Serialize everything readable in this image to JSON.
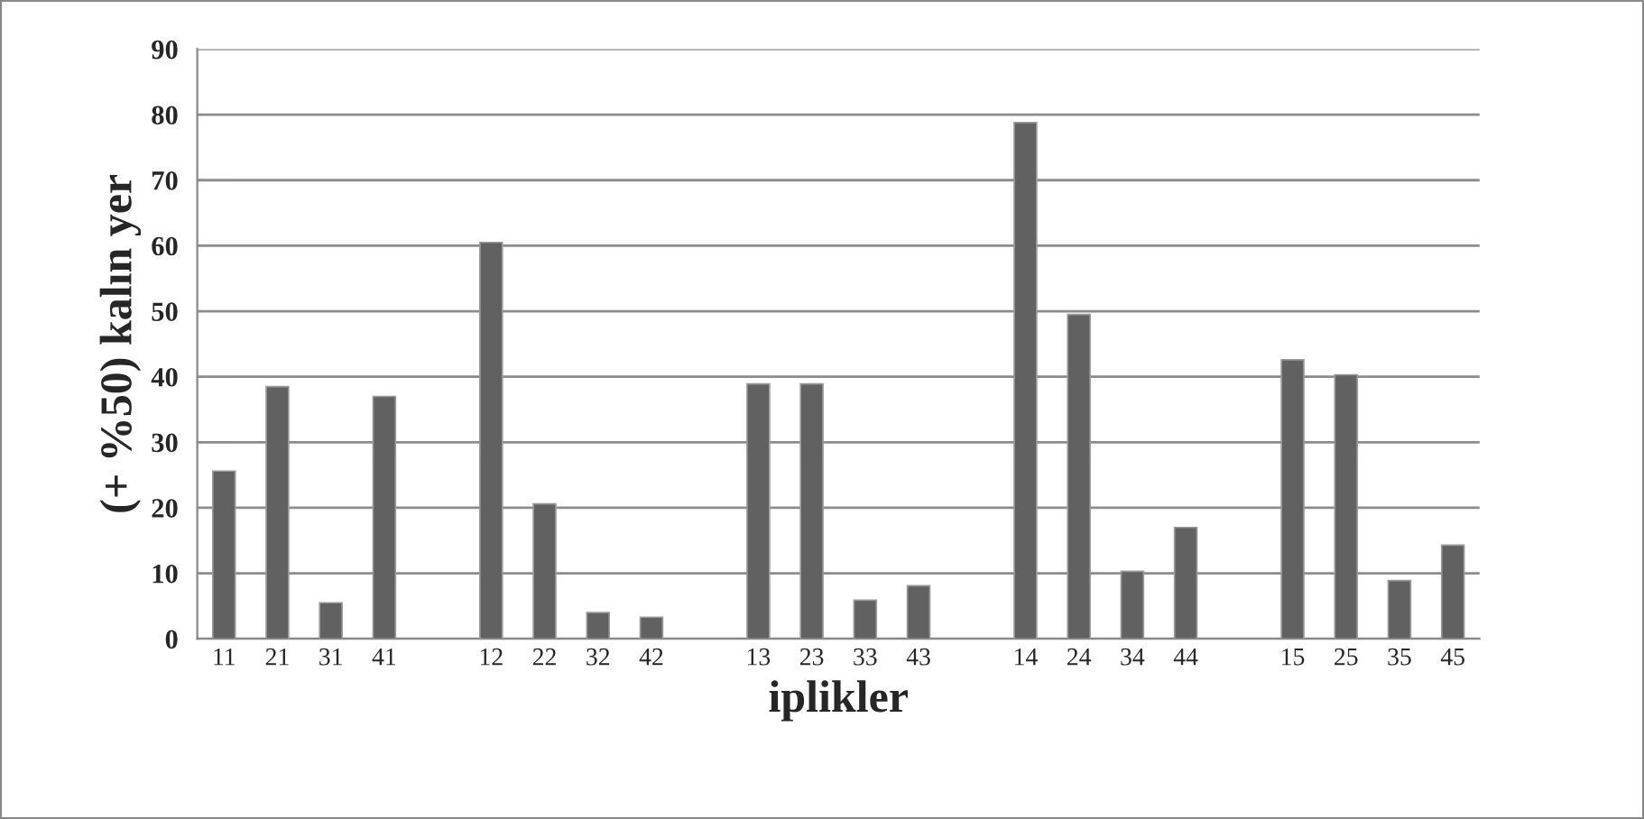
{
  "chart_data": {
    "type": "bar",
    "xlabel": "iplikler",
    "ylabel": "(+ %50) kalın yer",
    "categories": [
      "11",
      "21",
      "31",
      "41",
      null,
      "12",
      "22",
      "32",
      "42",
      null,
      "13",
      "23",
      "33",
      "43",
      null,
      "14",
      "24",
      "34",
      "44",
      null,
      "15",
      "25",
      "35",
      "45"
    ],
    "values": [
      25.6,
      38.5,
      5.5,
      37,
      null,
      60.5,
      20.6,
      4,
      3.3,
      null,
      38.9,
      38.9,
      5.9,
      8.1,
      null,
      78.8,
      49.5,
      10.3,
      17,
      null,
      42.6,
      40.3,
      8.9,
      14.3
    ],
    "color": "#616161",
    "ylim": [
      0,
      90
    ],
    "yticks": [
      0,
      10,
      20,
      30,
      40,
      50,
      60,
      70,
      80,
      90
    ],
    "grid": "y",
    "legend": false
  }
}
